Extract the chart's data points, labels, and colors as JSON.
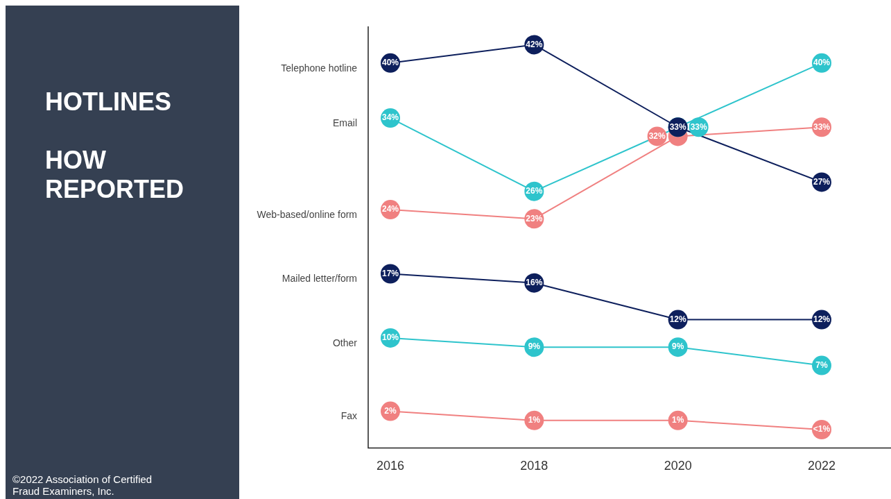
{
  "chart_data": {
    "type": "line",
    "title": "HOTLINES",
    "subtitle": "HOW REPORTED",
    "categories": [
      "2016",
      "2018",
      "2020",
      "2022"
    ],
    "ylim": [
      -2,
      44
    ],
    "tick_labels": "x",
    "marker": "circle",
    "line_style": "solid",
    "annotations": [
      "©2022 Association of Certified Fraud Examiners, Inc."
    ],
    "series": [
      {
        "name": "Telephone hotline",
        "color": "#0d1f5c",
        "values": [
          40,
          42,
          33,
          27
        ],
        "value_labels": [
          "40%",
          "42%",
          "33%",
          "27%"
        ]
      },
      {
        "name": "Email",
        "color": "#2ec4cc",
        "values": [
          34,
          26,
          33,
          40
        ],
        "value_labels": [
          "34%",
          "26%",
          "33%",
          "40%"
        ]
      },
      {
        "name": "Web-based/online form",
        "color": "#f08080",
        "values": [
          24,
          23,
          32,
          33
        ],
        "value_labels": [
          "24%",
          "23%",
          "32%",
          "33%"
        ]
      },
      {
        "name": "Mailed letter/form",
        "color": "#0d1f5c",
        "values": [
          17,
          16,
          12,
          12
        ],
        "value_labels": [
          "17%",
          "16%",
          "12%",
          "12%"
        ]
      },
      {
        "name": "Other",
        "color": "#2ec4cc",
        "values": [
          10,
          9,
          9,
          7
        ],
        "value_labels": [
          "10%",
          "9%",
          "9%",
          "7%"
        ]
      },
      {
        "name": "Fax",
        "color": "#f08080",
        "values": [
          2,
          1,
          1,
          0
        ],
        "value_labels": [
          "2%",
          "1%",
          "1%",
          "<1%"
        ]
      }
    ]
  }
}
